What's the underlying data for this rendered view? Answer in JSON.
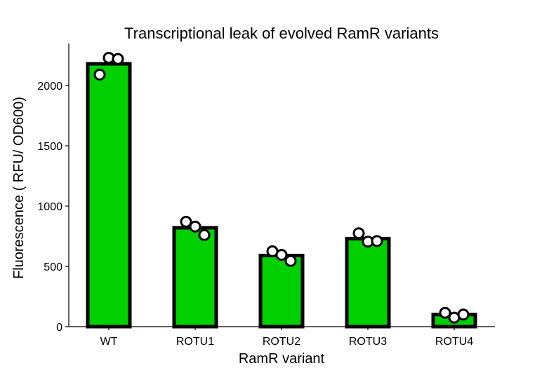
{
  "chart_data": {
    "type": "bar",
    "title": "Transcriptional leak of evolved RamR variants",
    "xlabel": "RamR variant",
    "ylabel": "Fluorescence ( RFU/ OD600)",
    "categories": [
      "WT",
      "ROTU1",
      "ROTU2",
      "ROTU3",
      "ROTU4"
    ],
    "values": [
      2180,
      820,
      590,
      730,
      100
    ],
    "replicates": [
      [
        2090,
        2230,
        2220
      ],
      [
        870,
        830,
        760
      ],
      [
        625,
        595,
        545
      ],
      [
        775,
        705,
        710
      ],
      [
        115,
        75,
        100
      ]
    ],
    "yticks": [
      0,
      500,
      1000,
      1500,
      2000
    ],
    "ylim": [
      0,
      2350
    ],
    "grid": false,
    "colors": {
      "bar_fill": "#00d000",
      "bar_edge": "#000000",
      "marker_edge": "#000000",
      "marker_fill": "#ffffff"
    }
  }
}
